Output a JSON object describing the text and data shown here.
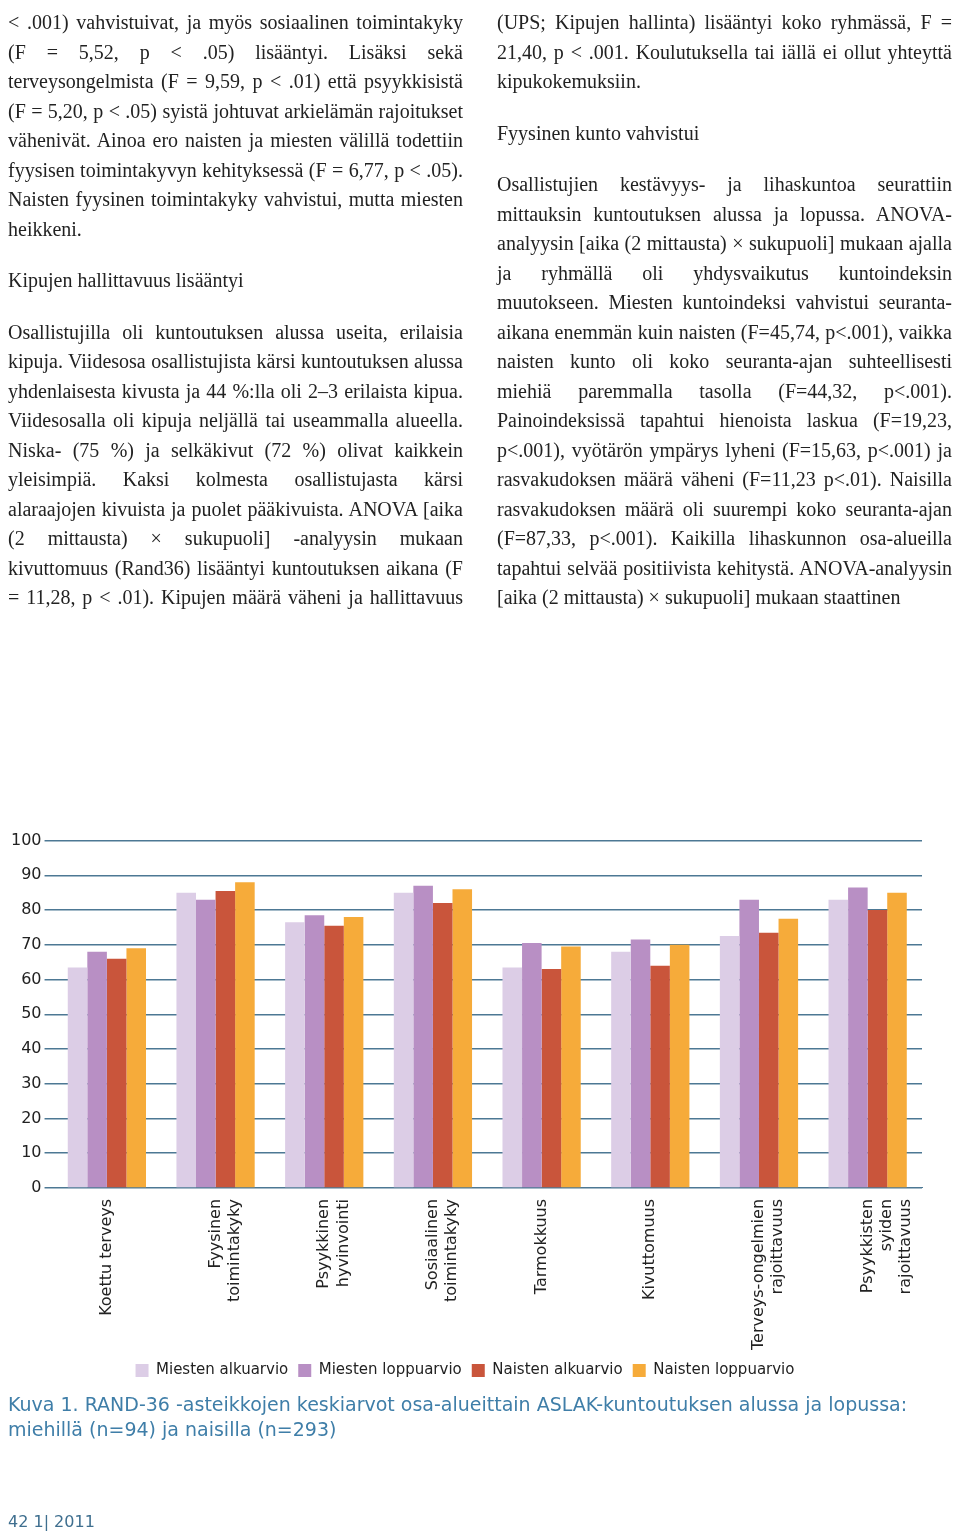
{
  "chart_data": {
    "type": "bar",
    "title": "Kuva 1. RAND-36 -asteikkojen keskiarvot osa-alueittain ASLAK-kuntoutuksen alussa ja lopussa: miehillä (n=94) ja naisilla (n=293)",
    "categories": [
      "Koettu terveys",
      "Fyysinen toimintakyky",
      "Psyykkinen hyvinvointi",
      "Sosiaalinen toimintakyky",
      "Tarmokkuus",
      "Kivuttomuus",
      "Terveys-ongelmien rajoittavuus",
      "Psyykkisten syiden rajoittavuus"
    ],
    "series": [
      {
        "name": "Miesten alkuarvio",
        "color": "#dccde6",
        "values": [
          63.5,
          85,
          76.5,
          85,
          63.5,
          68,
          72.5,
          83
        ]
      },
      {
        "name": "Miesten loppuarvio",
        "color": "#b88fc4",
        "values": [
          68,
          83,
          78.5,
          87,
          70.5,
          71.5,
          83,
          86.5
        ]
      },
      {
        "name": "Naisten alkuarvio",
        "color": "#c9553b",
        "values": [
          66,
          85.5,
          75.5,
          82,
          63,
          64,
          73.5,
          80
        ]
      },
      {
        "name": "Naisten loppuarvio",
        "color": "#f6ab3a",
        "values": [
          69,
          88,
          78,
          86,
          69.5,
          70,
          77.5,
          85
        ]
      }
    ],
    "ylim": [
      0,
      100
    ],
    "yticks": [
      0,
      10,
      20,
      30,
      40,
      50,
      60,
      70,
      80,
      90,
      100
    ],
    "grid": "y",
    "legend": "bottom",
    "annotations": [
      "< .001) vahvistuivat, ja myös sosiaalinen toimintakyky (F = 5,52, p < .05) lisääntyi. Lisäksi sekä terveysongelmista (F = 9,59, p < .01) että psyykkisistä (F = 5,20, p < .05) syistä johtuvat arkielämän rajoitukset vähenivät. Ainoa ero naisten ja miesten välillä todettiin fyysisen toimintakyvyn kehityksessä (F = 6,77, p < .05). Naisten fyysinen toimintakyky vahvistui, mutta miesten heikkeni.",
      "Kipujen hallittavuus lisääntyi",
      "Osallistujilla oli kuntoutuksen alussa useita, erilaisia kipuja. Viidesosa osallistujista kärsi kuntoutuksen alussa yhdenlaisesta kivusta ja 44 %:lla oli 2–3 erilaista kipua. Viidesosalla oli kipuja neljällä tai useammalla alueella. Niska- (75 %) ja selkäkivut (72 %) olivat kaikkein yleisimpiä. Kaksi kolmesta osallistujasta kärsi alaraajojen kivuista ja puolet pääkivuista. ANOVA [aika (2 mittausta) × sukupuoli] -analyysin mukaan kivuttomuus (Rand36) lisääntyi kuntoutuksen aikana (F = 11,28, p < .01). Kipujen määrä väheni ja hallittavuus (UPS; Kipujen hallinta) lisääntyi koko ryhmässä, F = 21,40, p < .001. Koulutuksella tai iällä ei ollut yhteyttä kipukokemuksiin.",
      "Fyysinen kunto vahvistui",
      "Osallistujien kestävyys- ja lihaskuntoa seurattiin mittauksin kuntoutuksen alussa ja lopussa. ANOVA-analyysin [aika (2 mittausta) × sukupuoli] mukaan ajalla ja ryhmällä oli yhdysvaikutus kuntoindeksin muutokseen. Miesten kuntoindeksi vahvistui seuranta-aikana enemmän kuin naisten (F=45,74, p<.001), vaikka naisten kunto oli koko seuranta-ajan suhteellisesti miehiä paremmalla tasolla (F=44,32, p<.001). Painoindeksissä tapahtui hienoista laskua (F=19,23, p<.001), vyötärön ympärys lyheni (F=15,63, p<.001) ja rasvakudoksen määrä väheni (F=11,23 p<.01). Naisilla rasvakudoksen määrä oli suurempi koko seuranta-ajan (F=87,33, p<.001). Kaikilla lihaskunnon osa-alueilla tapahtui selvää positiivista kehitystä. ANOVA-analyysin [aika (2 mittausta) × sukupuoli] mukaan staattinen",
      "42 1| 2011"
    ]
  }
}
